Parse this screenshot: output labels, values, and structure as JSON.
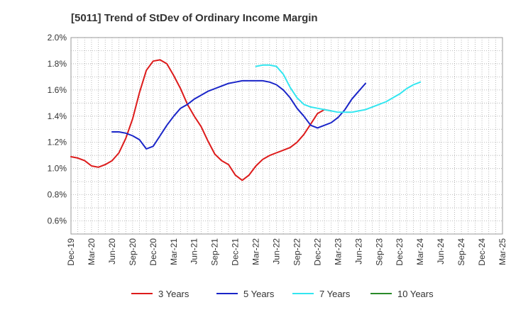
{
  "chart_data": {
    "type": "line",
    "title": "[5011]  Trend of StDev of Ordinary Income Margin",
    "xlabel": "",
    "ylabel": "",
    "x_ticks": [
      "Dec-19",
      "Mar-20",
      "Jun-20",
      "Sep-20",
      "Dec-20",
      "Mar-21",
      "Jun-21",
      "Sep-21",
      "Dec-21",
      "Mar-22",
      "Jun-22",
      "Sep-22",
      "Dec-22",
      "Mar-23",
      "Jun-23",
      "Sep-23",
      "Dec-23",
      "Mar-24",
      "Jun-24",
      "Sep-24",
      "Dec-24",
      "Mar-25"
    ],
    "y_ticks": [
      "0.6%",
      "0.8%",
      "1.0%",
      "1.2%",
      "1.4%",
      "1.6%",
      "1.8%",
      "2.0%"
    ],
    "ylim": [
      0.5,
      2.0
    ],
    "grid": true,
    "legend_position": "bottom",
    "series": [
      {
        "name": "3 Years",
        "color": "#dd1b1b",
        "start_index": 0,
        "values": [
          1.09,
          1.08,
          1.06,
          1.02,
          1.01,
          1.03,
          1.06,
          1.12,
          1.23,
          1.38,
          1.58,
          1.75,
          1.82,
          1.83,
          1.8,
          1.71,
          1.61,
          1.49,
          1.4,
          1.32,
          1.21,
          1.11,
          1.06,
          1.03,
          0.95,
          0.91,
          0.95,
          1.02,
          1.07,
          1.1,
          1.12,
          1.14,
          1.16,
          1.2,
          1.26,
          1.34,
          1.42,
          1.45,
          1.44
        ]
      },
      {
        "name": "5 Years",
        "color": "#1a25c8",
        "start_index": 6,
        "values": [
          1.28,
          1.28,
          1.27,
          1.25,
          1.22,
          1.15,
          1.17,
          1.25,
          1.33,
          1.4,
          1.46,
          1.49,
          1.53,
          1.56,
          1.59,
          1.61,
          1.63,
          1.65,
          1.66,
          1.67,
          1.67,
          1.67,
          1.67,
          1.66,
          1.64,
          1.6,
          1.54,
          1.46,
          1.4,
          1.33,
          1.31,
          1.33,
          1.35,
          1.39,
          1.45,
          1.53,
          1.59,
          1.65
        ]
      },
      {
        "name": "7 Years",
        "color": "#33e6f0",
        "start_index": 27,
        "values": [
          1.78,
          1.79,
          1.79,
          1.78,
          1.72,
          1.62,
          1.54,
          1.49,
          1.47,
          1.46,
          1.45,
          1.44,
          1.43,
          1.43,
          1.43,
          1.44,
          1.45,
          1.47,
          1.49,
          1.51,
          1.54,
          1.57,
          1.61,
          1.64,
          1.66
        ]
      },
      {
        "name": "10 Years",
        "color": "#2a8a2a",
        "start_index": 0,
        "values": []
      }
    ]
  }
}
